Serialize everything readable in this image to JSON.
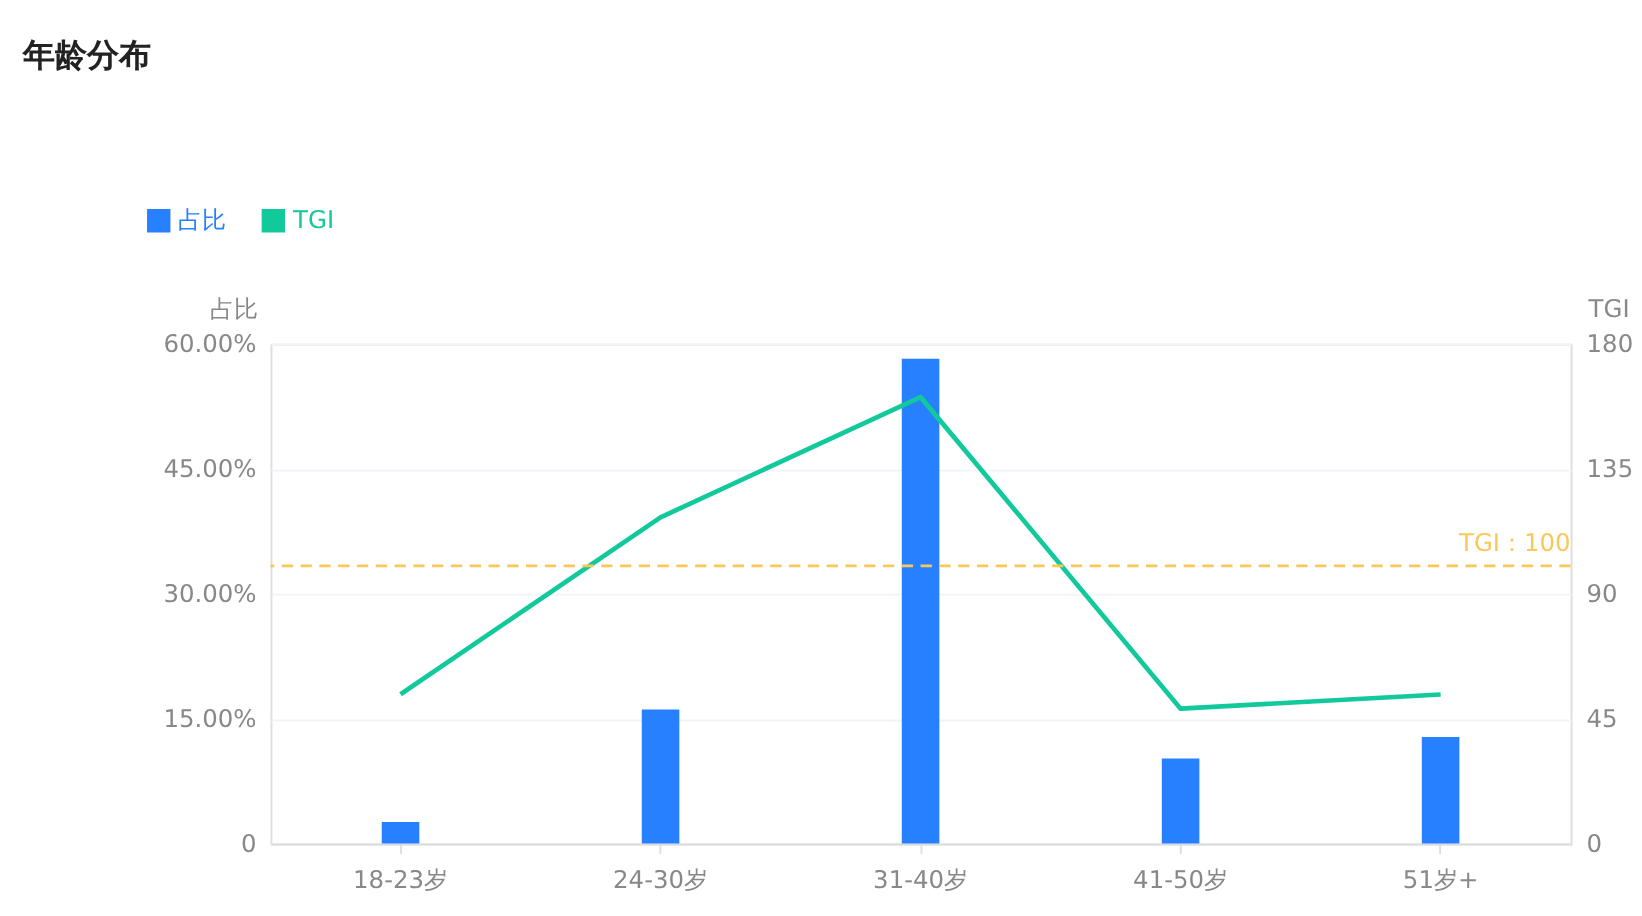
{
  "chart_data": {
    "type": "bar",
    "title": "年龄分布",
    "categories": [
      "18-23岁",
      "24-30岁",
      "31-40岁",
      "41-50岁",
      "51岁+"
    ],
    "series": [
      {
        "name": "占比",
        "color": "#2680ff",
        "values": [
          2.6,
          16.1,
          58.2,
          10.2,
          12.8
        ]
      },
      {
        "name": "TGI",
        "type": "line",
        "axis": "y2",
        "color": "#12c99b",
        "values": [
          53.8,
          117.5,
          160.8,
          48.6,
          53.7
        ]
      }
    ],
    "ylabel": "占比",
    "y2label": "TGI",
    "ylim": [
      0,
      60
    ],
    "yticks": [
      0,
      {
        "value": 15,
        "label": "15.00%"
      },
      {
        "value": 30,
        "label": "30.00%"
      },
      {
        "value": 45,
        "label": "45.00%"
      },
      {
        "value": 60,
        "label": "60.00%"
      }
    ],
    "y2lim": [
      0,
      180
    ],
    "y2ticks": [
      0,
      45,
      90,
      135,
      180
    ],
    "ref_lines": [
      {
        "axis": "y2",
        "value": 100,
        "label": "TGI：100",
        "color": "#fac858",
        "line_style": "dashed"
      }
    ],
    "grid": "y",
    "legend": "top left",
    "marker": "none",
    "line_style": "solid"
  }
}
